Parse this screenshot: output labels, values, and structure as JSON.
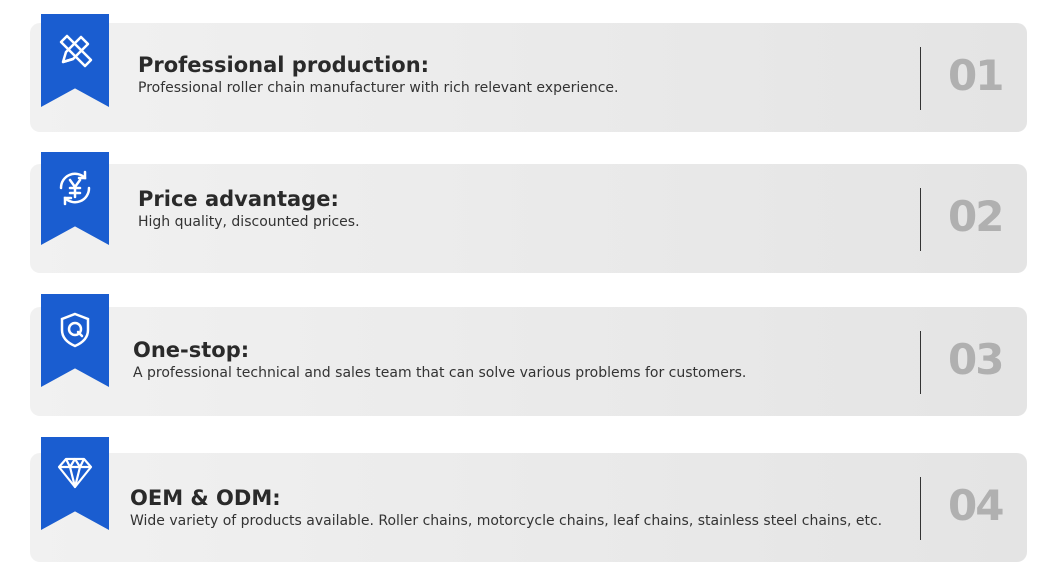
{
  "accent": "#1a5dd0",
  "items": [
    {
      "number": "01",
      "title": "Professional production:",
      "description": "Professional roller chain manufacturer with rich relevant experience.",
      "icon": "pencil-ruler-icon"
    },
    {
      "number": "02",
      "title": "Price advantage:",
      "description": "High quality, discounted prices.",
      "icon": "yen-exchange-icon"
    },
    {
      "number": "03",
      "title": "One-stop:",
      "description": "A professional technical and sales team that can solve various problems for customers.",
      "icon": "shield-q-icon"
    },
    {
      "number": "04",
      "title": "OEM & ODM:",
      "description": "Wide variety of products available.  Roller chains, motorcycle chains, leaf chains, stainless steel chains, etc.",
      "icon": "diamond-icon"
    }
  ]
}
